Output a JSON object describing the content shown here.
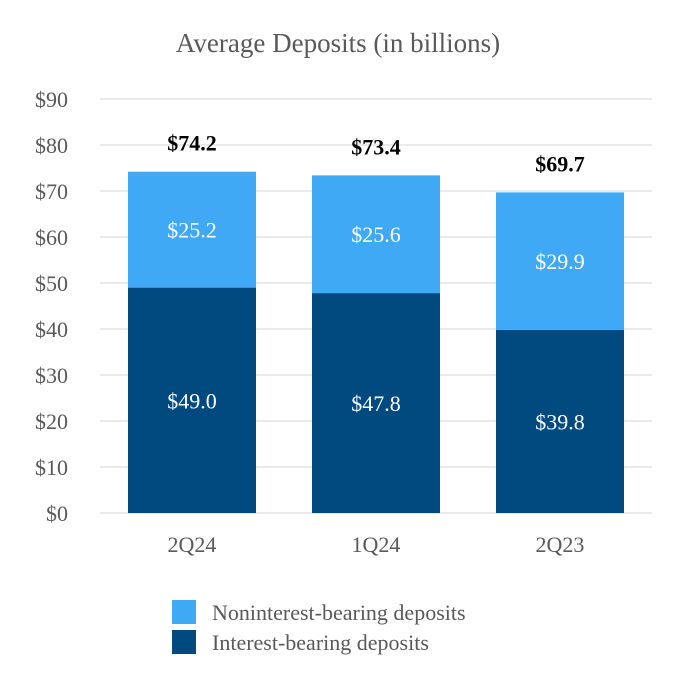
{
  "chart_data": {
    "type": "bar",
    "stacked": true,
    "title": "Average Deposits (in billions)",
    "categories": [
      "2Q24",
      "1Q24",
      "2Q23"
    ],
    "series": [
      {
        "name": "Interest-bearing deposits",
        "values": [
          49.0,
          47.8,
          39.8
        ],
        "labels": [
          "$49.0",
          "$47.8",
          "$39.8"
        ],
        "color": "#004a7f"
      },
      {
        "name": "Noninterest-bearing deposits",
        "values": [
          25.2,
          25.6,
          29.9
        ],
        "labels": [
          "$25.2",
          "$25.6",
          "$29.9"
        ],
        "color": "#3fa9f5"
      }
    ],
    "totals": [
      74.2,
      73.4,
      69.7
    ],
    "total_labels": [
      "$74.2",
      "$73.4",
      "$69.7"
    ],
    "ylim": [
      0,
      90
    ],
    "yticks": [
      0,
      10,
      20,
      30,
      40,
      50,
      60,
      70,
      80,
      90
    ],
    "ytick_labels": [
      "$0",
      "$10",
      "$20",
      "$30",
      "$40",
      "$50",
      "$60",
      "$70",
      "$80",
      "$90"
    ],
    "grid": true,
    "legend_position": "bottom",
    "legend_order": [
      "Noninterest-bearing deposits",
      "Interest-bearing deposits"
    ]
  }
}
